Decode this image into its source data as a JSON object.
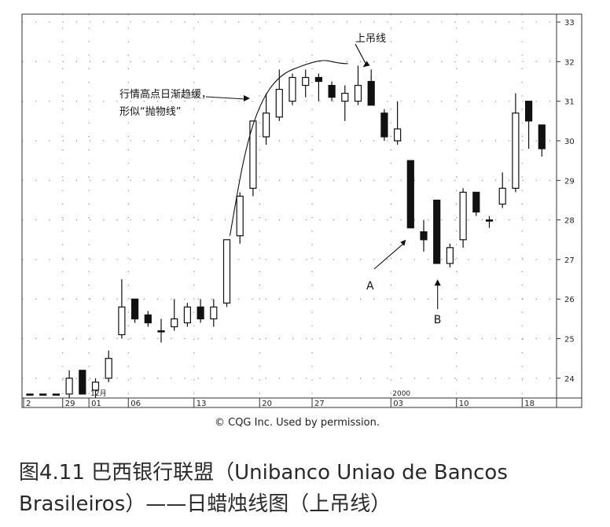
{
  "credit": "© CQG Inc. Used by permission.",
  "caption": {
    "line1": "图4.11 巴西银行联盟（Unibanco Uniao de Bancos",
    "line2": "Brasileiros）——日蜡烛线图（上吊线）"
  },
  "chart_data": {
    "type": "candlestick",
    "ylim": [
      23.5,
      33.2
    ],
    "y_ticks": [
      24,
      25,
      26,
      27,
      28,
      29,
      30,
      31,
      32,
      33
    ],
    "x_tick_labels": [
      {
        "label": "2",
        "index": 0
      },
      {
        "label": "29",
        "index": 3
      },
      {
        "label": "01",
        "index": 5
      },
      {
        "label": "06",
        "index": 8
      },
      {
        "label": "13",
        "index": 13
      },
      {
        "label": "20",
        "index": 18
      },
      {
        "label": "27",
        "index": 22
      },
      {
        "label": "03",
        "index": 28
      },
      {
        "label": "10",
        "index": 33
      },
      {
        "label": "18",
        "index": 38
      }
    ],
    "period_labels": [
      {
        "label": "12月",
        "index": 5
      },
      {
        "label": "2000",
        "index": 28
      }
    ],
    "candles": [
      {
        "open": 23.6,
        "high": 23.6,
        "low": 23.6,
        "close": 23.6
      },
      {
        "open": 23.6,
        "high": 23.6,
        "low": 23.6,
        "close": 23.6
      },
      {
        "open": 23.6,
        "high": 23.6,
        "low": 23.6,
        "close": 23.6
      },
      {
        "open": 23.6,
        "high": 24.2,
        "low": 23.5,
        "close": 24.0
      },
      {
        "open": 24.2,
        "high": 24.2,
        "low": 23.6,
        "close": 23.6
      },
      {
        "open": 23.7,
        "high": 24.0,
        "low": 23.5,
        "close": 23.9
      },
      {
        "open": 24.0,
        "high": 24.7,
        "low": 23.9,
        "close": 24.5
      },
      {
        "open": 25.1,
        "high": 26.5,
        "low": 25.0,
        "close": 25.8
      },
      {
        "open": 26.0,
        "high": 26.0,
        "low": 25.4,
        "close": 25.5
      },
      {
        "open": 25.6,
        "high": 25.7,
        "low": 25.3,
        "close": 25.4
      },
      {
        "open": 25.2,
        "high": 25.5,
        "low": 24.9,
        "close": 25.2
      },
      {
        "open": 25.3,
        "high": 26.0,
        "low": 25.2,
        "close": 25.5
      },
      {
        "open": 25.4,
        "high": 25.9,
        "low": 25.3,
        "close": 25.8
      },
      {
        "open": 25.8,
        "high": 26.0,
        "low": 25.4,
        "close": 25.5
      },
      {
        "open": 25.5,
        "high": 26.0,
        "low": 25.3,
        "close": 25.8
      },
      {
        "open": 25.9,
        "high": 27.5,
        "low": 25.8,
        "close": 27.5
      },
      {
        "open": 27.6,
        "high": 28.7,
        "low": 27.4,
        "close": 28.6
      },
      {
        "open": 28.8,
        "high": 30.5,
        "low": 28.6,
        "close": 30.5
      },
      {
        "open": 30.1,
        "high": 31.2,
        "low": 29.9,
        "close": 30.7
      },
      {
        "open": 30.6,
        "high": 31.8,
        "low": 30.5,
        "close": 31.3
      },
      {
        "open": 31.0,
        "high": 31.7,
        "low": 30.9,
        "close": 31.6
      },
      {
        "open": 31.4,
        "high": 31.8,
        "low": 31.1,
        "close": 31.6
      },
      {
        "open": 31.6,
        "high": 31.7,
        "low": 31.0,
        "close": 31.5
      },
      {
        "open": 31.4,
        "high": 31.5,
        "low": 31.0,
        "close": 31.1
      },
      {
        "open": 31.0,
        "high": 31.4,
        "low": 30.5,
        "close": 31.2
      },
      {
        "open": 31.0,
        "high": 31.9,
        "low": 30.9,
        "close": 31.4
      },
      {
        "open": 31.5,
        "high": 31.8,
        "low": 30.9,
        "close": 30.9
      },
      {
        "open": 30.7,
        "high": 30.8,
        "low": 30.0,
        "close": 30.1
      },
      {
        "open": 30.0,
        "high": 31.0,
        "low": 29.9,
        "close": 30.3
      },
      {
        "open": 29.5,
        "high": 29.5,
        "low": 27.8,
        "close": 27.8
      },
      {
        "open": 27.7,
        "high": 28.0,
        "low": 27.2,
        "close": 27.5
      },
      {
        "open": 28.5,
        "high": 28.5,
        "low": 26.9,
        "close": 26.9
      },
      {
        "open": 26.9,
        "high": 27.4,
        "low": 26.8,
        "close": 27.3
      },
      {
        "open": 27.5,
        "high": 28.8,
        "low": 27.3,
        "close": 28.7
      },
      {
        "open": 28.7,
        "high": 28.7,
        "low": 28.1,
        "close": 28.2
      },
      {
        "open": 28.0,
        "high": 28.1,
        "low": 27.8,
        "close": 28.0
      },
      {
        "open": 28.4,
        "high": 29.2,
        "low": 28.3,
        "close": 28.8
      },
      {
        "open": 28.8,
        "high": 31.2,
        "low": 28.7,
        "close": 30.7
      },
      {
        "open": 31.0,
        "high": 31.0,
        "low": 29.8,
        "close": 30.5
      },
      {
        "open": 30.4,
        "high": 30.4,
        "low": 29.6,
        "close": 29.8
      }
    ],
    "annotations": [
      {
        "text": "上吊线",
        "index": 25
      },
      {
        "text": "行情高点日渐趋缓，\n形似“抛物线”",
        "index": 12
      },
      {
        "text": "A",
        "index": 29
      },
      {
        "text": "B",
        "index": 31
      }
    ]
  }
}
